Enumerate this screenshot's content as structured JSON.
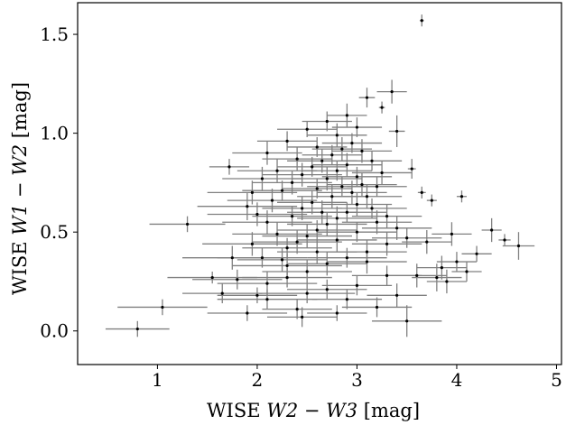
{
  "chart_data": {
    "type": "scatter",
    "title": "",
    "xlabel": "WISE W2 − W3 [mag]",
    "ylabel": "WISE W1 − W2 [mag]",
    "xlabel_parts": {
      "prefix": "WISE ",
      "math": "W2 − W3",
      "suffix": " [mag]"
    },
    "ylabel_parts": {
      "prefix": "WISE ",
      "math": "W1 − W2",
      "suffix": " [mag]"
    },
    "xlim": [
      0.2,
      5.05
    ],
    "ylim": [
      -0.17,
      1.66
    ],
    "xticks": [
      1,
      2,
      3,
      4,
      5
    ],
    "xtick_labels": [
      "1",
      "2",
      "3",
      "4",
      "5"
    ],
    "yticks": [
      0.0,
      0.5,
      1.0,
      1.5
    ],
    "ytick_labels": [
      "0.0",
      "0.5",
      "1.0",
      "1.5"
    ],
    "grid": false,
    "colors": {
      "point": "#000000",
      "errorbar": "#808080",
      "axes": "#000000"
    },
    "points": [
      [
        3.65,
        1.57,
        0.02,
        0.03
      ],
      [
        0.8,
        0.01,
        0.32,
        0.04
      ],
      [
        1.05,
        0.12,
        0.45,
        0.04
      ],
      [
        1.3,
        0.54,
        0.38,
        0.04
      ],
      [
        1.55,
        0.27,
        0.45,
        0.03
      ],
      [
        1.72,
        0.83,
        0.2,
        0.04
      ],
      [
        1.9,
        0.09,
        0.4,
        0.04
      ],
      [
        2.1,
        0.16,
        0.5,
        0.05
      ],
      [
        2.3,
        0.33,
        0.55,
        0.06
      ],
      [
        2.5,
        0.19,
        0.48,
        0.05
      ],
      [
        2.7,
        0.21,
        0.4,
        0.05
      ],
      [
        2.9,
        0.16,
        0.35,
        0.05
      ],
      [
        3.1,
        0.35,
        0.4,
        0.06
      ],
      [
        3.3,
        0.28,
        0.35,
        0.05
      ],
      [
        3.5,
        0.05,
        0.35,
        0.08
      ],
      [
        3.2,
        0.12,
        0.35,
        0.05
      ],
      [
        2.8,
        0.09,
        0.3,
        0.04
      ],
      [
        2.4,
        0.11,
        0.35,
        0.05
      ],
      [
        2.0,
        0.18,
        0.4,
        0.04
      ],
      [
        1.8,
        0.26,
        0.45,
        0.05
      ],
      [
        3.6,
        0.28,
        0.3,
        0.06
      ],
      [
        3.8,
        0.27,
        0.25,
        0.07
      ],
      [
        3.9,
        0.25,
        0.2,
        0.06
      ],
      [
        4.0,
        0.35,
        0.2,
        0.05
      ],
      [
        4.2,
        0.39,
        0.15,
        0.04
      ],
      [
        4.35,
        0.51,
        0.1,
        0.06
      ],
      [
        4.48,
        0.46,
        0.06,
        0.03
      ],
      [
        4.62,
        0.43,
        0.16,
        0.07
      ],
      [
        4.05,
        0.68,
        0.05,
        0.03
      ],
      [
        3.75,
        0.66,
        0.05,
        0.03
      ],
      [
        3.65,
        0.7,
        0.04,
        0.03
      ],
      [
        3.55,
        0.82,
        0.04,
        0.05
      ],
      [
        3.4,
        1.01,
        0.08,
        0.08
      ],
      [
        3.35,
        1.21,
        0.15,
        0.06
      ],
      [
        3.1,
        1.18,
        0.08,
        0.05
      ],
      [
        3.25,
        1.13,
        0.03,
        0.03
      ],
      [
        2.7,
        1.06,
        0.25,
        0.05
      ],
      [
        2.9,
        1.09,
        0.2,
        0.06
      ],
      [
        2.5,
        1.02,
        0.3,
        0.04
      ],
      [
        2.3,
        0.96,
        0.3,
        0.05
      ],
      [
        2.1,
        0.9,
        0.35,
        0.06
      ],
      [
        2.05,
        0.77,
        0.4,
        0.06
      ],
      [
        1.95,
        0.7,
        0.45,
        0.06
      ],
      [
        2.15,
        0.66,
        0.45,
        0.06
      ],
      [
        2.25,
        0.71,
        0.4,
        0.05
      ],
      [
        2.35,
        0.75,
        0.4,
        0.06
      ],
      [
        2.45,
        0.79,
        0.4,
        0.06
      ],
      [
        2.55,
        0.83,
        0.35,
        0.05
      ],
      [
        2.65,
        0.86,
        0.35,
        0.06
      ],
      [
        2.75,
        0.89,
        0.3,
        0.05
      ],
      [
        2.85,
        0.92,
        0.3,
        0.06
      ],
      [
        2.95,
        0.95,
        0.3,
        0.05
      ],
      [
        3.05,
        0.91,
        0.3,
        0.06
      ],
      [
        3.15,
        0.86,
        0.3,
        0.05
      ],
      [
        3.25,
        0.8,
        0.3,
        0.06
      ],
      [
        3.2,
        0.73,
        0.3,
        0.05
      ],
      [
        3.1,
        0.68,
        0.35,
        0.06
      ],
      [
        3.0,
        0.64,
        0.35,
        0.06
      ],
      [
        2.9,
        0.6,
        0.4,
        0.05
      ],
      [
        2.8,
        0.57,
        0.4,
        0.06
      ],
      [
        2.7,
        0.54,
        0.4,
        0.06
      ],
      [
        2.6,
        0.51,
        0.4,
        0.05
      ],
      [
        2.5,
        0.48,
        0.45,
        0.06
      ],
      [
        2.4,
        0.45,
        0.45,
        0.06
      ],
      [
        2.3,
        0.42,
        0.45,
        0.05
      ],
      [
        2.2,
        0.49,
        0.45,
        0.06
      ],
      [
        2.1,
        0.55,
        0.45,
        0.06
      ],
      [
        2.0,
        0.59,
        0.5,
        0.06
      ],
      [
        1.9,
        0.63,
        0.5,
        0.07
      ],
      [
        2.2,
        0.81,
        0.4,
        0.06
      ],
      [
        2.6,
        0.72,
        0.35,
        0.05
      ],
      [
        2.7,
        0.77,
        0.35,
        0.06
      ],
      [
        2.8,
        0.81,
        0.35,
        0.05
      ],
      [
        2.9,
        0.84,
        0.35,
        0.06
      ],
      [
        3.0,
        0.78,
        0.35,
        0.05
      ],
      [
        2.55,
        0.65,
        0.35,
        0.06
      ],
      [
        2.45,
        0.62,
        0.4,
        0.06
      ],
      [
        2.35,
        0.58,
        0.4,
        0.05
      ],
      [
        2.65,
        0.6,
        0.35,
        0.06
      ],
      [
        2.75,
        0.68,
        0.35,
        0.06
      ],
      [
        2.85,
        0.73,
        0.35,
        0.05
      ],
      [
        2.95,
        0.7,
        0.35,
        0.06
      ],
      [
        3.05,
        0.74,
        0.35,
        0.06
      ],
      [
        3.15,
        0.62,
        0.35,
        0.05
      ],
      [
        3.3,
        0.58,
        0.35,
        0.06
      ],
      [
        3.4,
        0.52,
        0.35,
        0.06
      ],
      [
        3.5,
        0.47,
        0.35,
        0.05
      ],
      [
        3.3,
        0.44,
        0.35,
        0.06
      ],
      [
        3.1,
        0.4,
        0.4,
        0.06
      ],
      [
        2.9,
        0.37,
        0.4,
        0.05
      ],
      [
        2.7,
        0.34,
        0.4,
        0.06
      ],
      [
        2.5,
        0.3,
        0.45,
        0.06
      ],
      [
        2.3,
        0.27,
        0.45,
        0.05
      ],
      [
        2.1,
        0.24,
        0.5,
        0.06
      ],
      [
        1.95,
        0.44,
        0.5,
        0.06
      ],
      [
        2.05,
        0.37,
        0.45,
        0.05
      ],
      [
        2.6,
        0.4,
        0.4,
        0.06
      ],
      [
        2.8,
        0.46,
        0.4,
        0.06
      ],
      [
        3.0,
        0.5,
        0.4,
        0.05
      ],
      [
        3.2,
        0.55,
        0.35,
        0.06
      ],
      [
        2.4,
        0.87,
        0.35,
        0.06
      ],
      [
        2.6,
        0.93,
        0.3,
        0.05
      ],
      [
        2.8,
        0.99,
        0.3,
        0.06
      ],
      [
        3.0,
        1.03,
        0.25,
        0.05
      ],
      [
        2.25,
        0.36,
        0.45,
        0.06
      ],
      [
        1.75,
        0.37,
        0.5,
        0.06
      ],
      [
        1.65,
        0.19,
        0.4,
        0.05
      ],
      [
        2.45,
        0.07,
        0.35,
        0.05
      ],
      [
        3.0,
        0.23,
        0.35,
        0.05
      ],
      [
        3.4,
        0.18,
        0.3,
        0.06
      ],
      [
        3.85,
        0.32,
        0.25,
        0.06
      ],
      [
        4.1,
        0.3,
        0.15,
        0.05
      ],
      [
        3.7,
        0.45,
        0.25,
        0.06
      ],
      [
        3.95,
        0.49,
        0.2,
        0.06
      ]
    ]
  }
}
